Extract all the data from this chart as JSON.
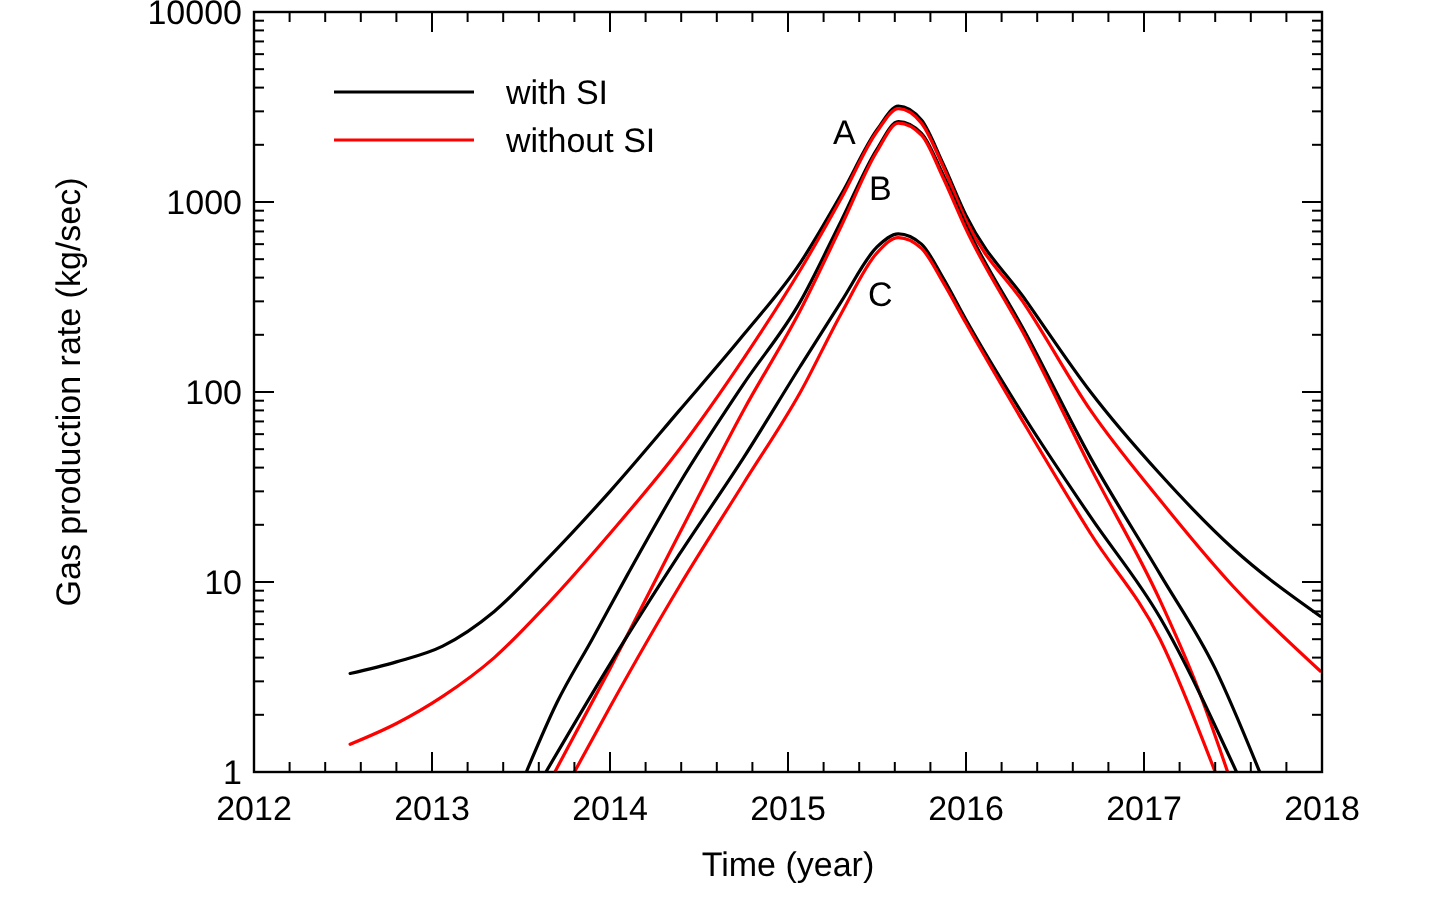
{
  "chart_data": {
    "type": "line",
    "xlabel": "Time (year)",
    "ylabel": "Gas production rate (kg/sec)",
    "log": true,
    "legend": "top left",
    "line_style": "solid",
    "marker": "none",
    "grid": false,
    "xlim": [
      2012,
      2018
    ],
    "ylim": [
      1,
      10000
    ],
    "xticks": [
      2012,
      {
        "value": 2012.2,
        "label": null
      },
      {
        "value": 2012.4,
        "label": null
      },
      {
        "value": 2012.6,
        "label": null
      },
      {
        "value": 2012.8,
        "label": null
      },
      2013,
      {
        "value": 2013.2,
        "label": null
      },
      {
        "value": 2013.4,
        "label": null
      },
      {
        "value": 2013.6,
        "label": null
      },
      {
        "value": 2013.8,
        "label": null
      },
      2014,
      {
        "value": 2014.2,
        "label": null
      },
      {
        "value": 2014.4,
        "label": null
      },
      {
        "value": 2014.6,
        "label": null
      },
      {
        "value": 2014.8,
        "label": null
      },
      2015,
      {
        "value": 2015.2,
        "label": null
      },
      {
        "value": 2015.4,
        "label": null
      },
      {
        "value": 2015.6,
        "label": null
      },
      {
        "value": 2015.8,
        "label": null
      },
      2016,
      {
        "value": 2016.2,
        "label": null
      },
      {
        "value": 2016.4,
        "label": null
      },
      {
        "value": 2016.6,
        "label": null
      },
      {
        "value": 2016.8,
        "label": null
      },
      2017,
      {
        "value": 2017.2,
        "label": null
      },
      {
        "value": 2017.4,
        "label": null
      },
      {
        "value": 2017.6,
        "label": null
      },
      {
        "value": 2017.8,
        "label": null
      },
      2018
    ],
    "yticks": [
      1,
      {
        "value": 2,
        "label": null
      },
      {
        "value": 3,
        "label": null
      },
      {
        "value": 4,
        "label": null
      },
      {
        "value": 5,
        "label": null
      },
      {
        "value": 6,
        "label": null
      },
      {
        "value": 7,
        "label": null
      },
      {
        "value": 8,
        "label": null
      },
      {
        "value": 9,
        "label": null
      },
      10,
      {
        "value": 20,
        "label": null
      },
      {
        "value": 30,
        "label": null
      },
      {
        "value": 40,
        "label": null
      },
      {
        "value": 50,
        "label": null
      },
      {
        "value": 60,
        "label": null
      },
      {
        "value": 70,
        "label": null
      },
      {
        "value": 80,
        "label": null
      },
      {
        "value": 90,
        "label": null
      },
      100,
      {
        "value": 200,
        "label": null
      },
      {
        "value": 300,
        "label": null
      },
      {
        "value": 400,
        "label": null
      },
      {
        "value": 500,
        "label": null
      },
      {
        "value": 600,
        "label": null
      },
      {
        "value": 700,
        "label": null
      },
      {
        "value": 800,
        "label": null
      },
      {
        "value": 900,
        "label": null
      },
      1000,
      {
        "value": 2000,
        "label": null
      },
      {
        "value": 3000,
        "label": null
      },
      {
        "value": 4000,
        "label": null
      },
      {
        "value": 5000,
        "label": null
      },
      {
        "value": 6000,
        "label": null
      },
      {
        "value": 7000,
        "label": null
      },
      {
        "value": 8000,
        "label": null
      },
      {
        "value": 9000,
        "label": null
      },
      10000
    ],
    "annotations": [
      "A",
      "B",
      "C"
    ],
    "series": [
      {
        "name": "with SI",
        "color": "#000000",
        "x": [
          2012.54,
          2012.8,
          2013.06,
          2013.35,
          2013.64,
          2014.0,
          2014.39,
          2014.75,
          2015.07,
          2015.3,
          2015.5,
          2015.62,
          2015.75,
          2015.87,
          2016.0,
          2016.34,
          2016.7,
          2017.09,
          2017.5,
          2017.99
        ],
        "values": [
          3.3,
          3.8,
          4.6,
          7,
          13,
          30,
          80,
          200,
          480,
          1100,
          2400,
          3200,
          2700,
          1600,
          850,
          300,
          100,
          37,
          15,
          6.6
        ]
      },
      {
        "name": "without SI",
        "color": "#ff0000",
        "x": [
          2012.54,
          2012.8,
          2013.06,
          2013.35,
          2013.64,
          2014.0,
          2014.39,
          2014.75,
          2015.07,
          2015.3,
          2015.5,
          2015.62,
          2015.75,
          2015.87,
          2016.0,
          2016.34,
          2016.7,
          2017.09,
          2017.5,
          2017.99
        ],
        "values": [
          1.4,
          1.8,
          2.5,
          4,
          7.5,
          18,
          50,
          150,
          440,
          1050,
          2350,
          3100,
          2600,
          1550,
          800,
          280,
          80,
          27,
          9.5,
          3.4
        ]
      },
      {
        "color": "#000000",
        "x": [
          2013.53,
          2013.7,
          2013.9,
          2014.1,
          2014.39,
          2014.75,
          2015.07,
          2015.3,
          2015.5,
          2015.62,
          2015.75,
          2015.87,
          2016.0,
          2016.34,
          2016.7,
          2017.09,
          2017.4,
          2017.65
        ],
        "values": [
          1,
          2.3,
          5,
          11,
          33,
          110,
          300,
          800,
          1900,
          2650,
          2300,
          1400,
          750,
          200,
          45,
          11,
          3.5,
          1
        ]
      },
      {
        "color": "#ff0000",
        "x": [
          2013.69,
          2014.0,
          2014.39,
          2014.75,
          2015.07,
          2015.3,
          2015.5,
          2015.62,
          2015.75,
          2015.87,
          2016.0,
          2016.34,
          2016.7,
          2017.09,
          2017.3,
          2017.47
        ],
        "values": [
          1,
          3.5,
          18,
          80,
          270,
          750,
          1850,
          2600,
          2250,
          1350,
          720,
          190,
          40,
          8,
          2.8,
          1
        ]
      },
      {
        "color": "#000000",
        "x": [
          2013.64,
          2014.0,
          2014.39,
          2014.75,
          2015.07,
          2015.3,
          2015.5,
          2015.62,
          2015.75,
          2015.87,
          2016.0,
          2016.34,
          2016.7,
          2017.09,
          2017.52
        ],
        "values": [
          1,
          3.7,
          14,
          45,
          137,
          300,
          580,
          680,
          600,
          400,
          240,
          71,
          22,
          6.5,
          1
        ]
      },
      {
        "color": "#ff0000",
        "x": [
          2013.8,
          2014.0,
          2014.39,
          2014.75,
          2015.07,
          2015.3,
          2015.5,
          2015.62,
          2015.75,
          2015.87,
          2016.0,
          2016.34,
          2016.7,
          2017.09,
          2017.4
        ],
        "values": [
          1,
          2.2,
          9.5,
          33,
          100,
          260,
          540,
          650,
          570,
          380,
          230,
          65,
          18,
          5,
          1
        ]
      }
    ]
  }
}
